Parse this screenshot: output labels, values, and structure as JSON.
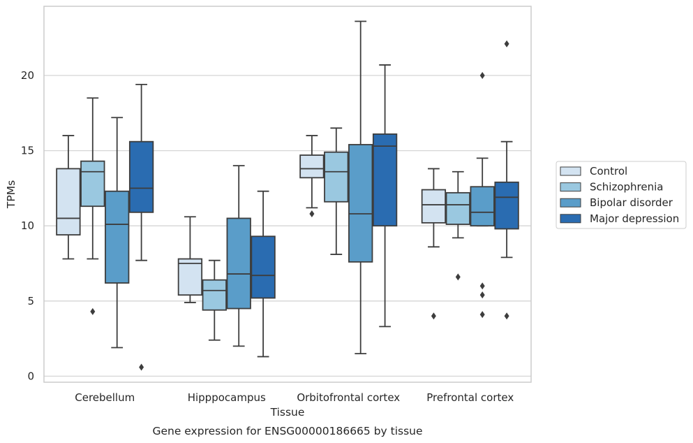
{
  "chart_data": {
    "type": "boxplot",
    "title": "",
    "caption": "Gene expression for ENSG00000186665 by tissue",
    "xlabel": "Tissue",
    "ylabel": "TPMs",
    "ylim": [
      -0.4,
      24.6
    ],
    "yticks": [
      0,
      5,
      10,
      15,
      20
    ],
    "grid": "horizontal",
    "legend_position": "right",
    "categories": [
      "Cerebellum",
      "Hipppocampus",
      "Orbitofrontal cortex",
      "Prefrontal cortex"
    ],
    "series": [
      {
        "name": "Control",
        "color": "#d3e3f1",
        "boxes": [
          {
            "whisker_low": 7.8,
            "q1": 9.4,
            "median": 10.5,
            "q3": 13.8,
            "whisker_high": 16.0,
            "outliers": []
          },
          {
            "whisker_low": 4.9,
            "q1": 5.4,
            "median": 7.5,
            "q3": 7.8,
            "whisker_high": 10.6,
            "outliers": []
          },
          {
            "whisker_low": 11.2,
            "q1": 13.2,
            "median": 13.8,
            "q3": 14.7,
            "whisker_high": 16.0,
            "outliers": [
              10.8
            ]
          },
          {
            "whisker_low": 8.6,
            "q1": 10.2,
            "median": 11.4,
            "q3": 12.4,
            "whisker_high": 13.8,
            "outliers": [
              4.0
            ]
          }
        ]
      },
      {
        "name": "Schizophrenia",
        "color": "#9ac8e0",
        "boxes": [
          {
            "whisker_low": 7.8,
            "q1": 11.3,
            "median": 13.6,
            "q3": 14.3,
            "whisker_high": 18.5,
            "outliers": [
              4.3
            ]
          },
          {
            "whisker_low": 2.4,
            "q1": 4.4,
            "median": 5.7,
            "q3": 6.4,
            "whisker_high": 7.7,
            "outliers": []
          },
          {
            "whisker_low": 8.1,
            "q1": 11.6,
            "median": 13.6,
            "q3": 14.9,
            "whisker_high": 16.5,
            "outliers": []
          },
          {
            "whisker_low": 9.2,
            "q1": 10.1,
            "median": 11.4,
            "q3": 12.2,
            "whisker_high": 13.6,
            "outliers": [
              6.6
            ]
          }
        ]
      },
      {
        "name": "Bipolar disorder",
        "color": "#5a9dc9",
        "boxes": [
          {
            "whisker_low": 1.9,
            "q1": 6.2,
            "median": 10.1,
            "q3": 12.3,
            "whisker_high": 17.2,
            "outliers": []
          },
          {
            "whisker_low": 2.0,
            "q1": 4.5,
            "median": 6.8,
            "q3": 10.5,
            "whisker_high": 14.0,
            "outliers": []
          },
          {
            "whisker_low": 1.5,
            "q1": 7.6,
            "median": 10.8,
            "q3": 15.4,
            "whisker_high": 23.6,
            "outliers": []
          },
          {
            "whisker_low": 10.0,
            "q1": 10.0,
            "median": 10.9,
            "q3": 12.6,
            "whisker_high": 14.5,
            "outliers": [
              20.0,
              6.0,
              5.4,
              4.1
            ]
          }
        ]
      },
      {
        "name": "Major depression",
        "color": "#2a6cb1",
        "boxes": [
          {
            "whisker_low": 7.7,
            "q1": 10.9,
            "median": 12.5,
            "q3": 15.6,
            "whisker_high": 19.4,
            "outliers": [
              0.6
            ]
          },
          {
            "whisker_low": 1.3,
            "q1": 5.2,
            "median": 6.7,
            "q3": 9.3,
            "whisker_high": 12.3,
            "outliers": []
          },
          {
            "whisker_low": 3.3,
            "q1": 10.0,
            "median": 15.3,
            "q3": 16.1,
            "whisker_high": 20.7,
            "outliers": []
          },
          {
            "whisker_low": 7.9,
            "q1": 9.8,
            "median": 11.9,
            "q3": 12.9,
            "whisker_high": 15.6,
            "outliers": [
              22.1,
              4.0
            ]
          }
        ]
      }
    ]
  }
}
